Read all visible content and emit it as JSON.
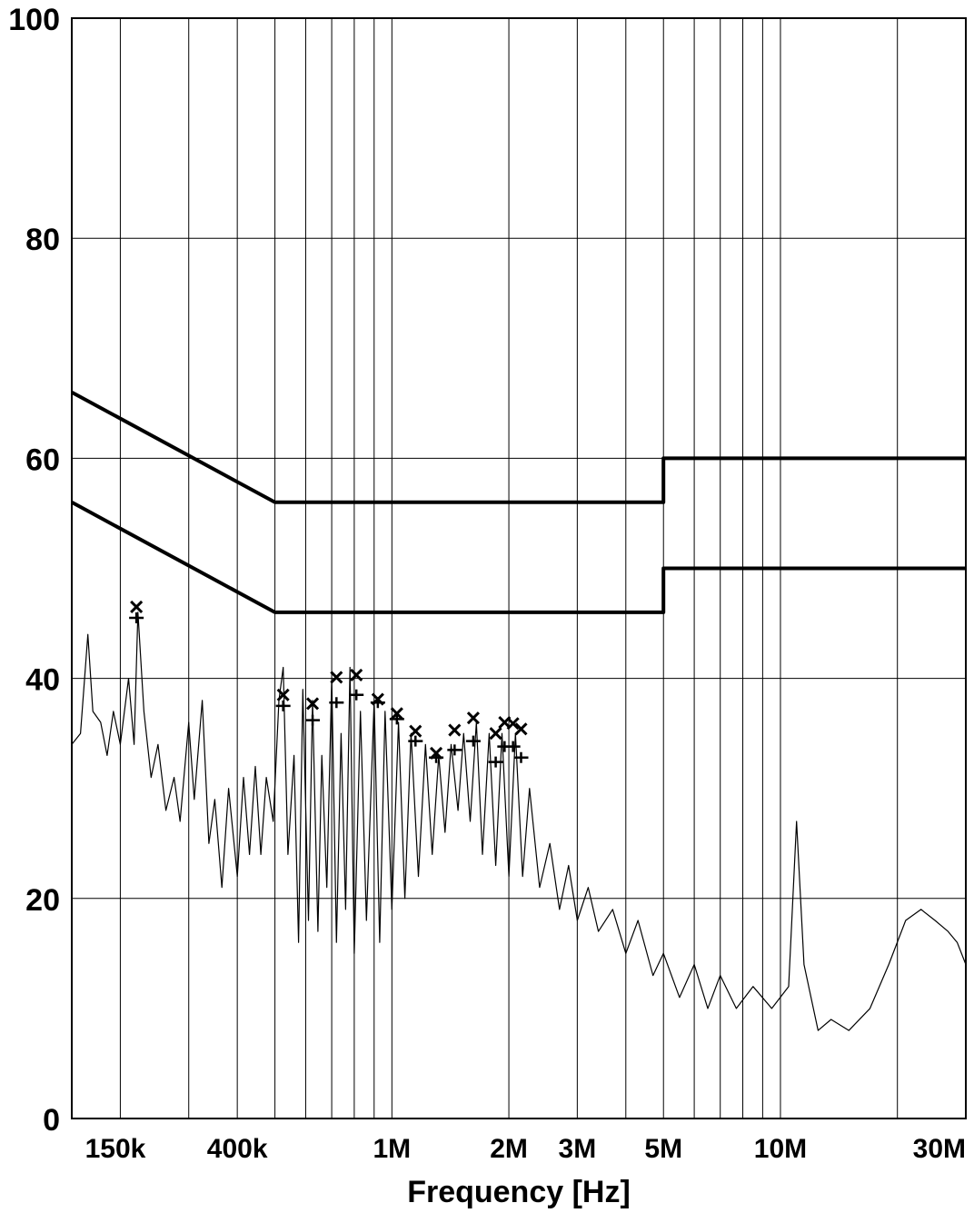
{
  "chart_data": {
    "type": "line",
    "title": "",
    "xlabel": "Frequency [Hz]",
    "ylabel": "",
    "xscale": "log",
    "xlim": [
      150000,
      30000000
    ],
    "ylim": [
      0,
      100
    ],
    "grid": true,
    "legend": "none",
    "colors": {
      "background": "#ffffff",
      "ink": "#000000"
    },
    "y_ticks": [
      {
        "value": 0,
        "label": "0"
      },
      {
        "value": 20,
        "label": "20"
      },
      {
        "value": 40,
        "label": "40"
      },
      {
        "value": 60,
        "label": "60"
      },
      {
        "value": 80,
        "label": "80"
      },
      {
        "value": 100,
        "label": "100"
      }
    ],
    "x_ticks": [
      {
        "value": 150000,
        "label": "150k"
      },
      {
        "value": 400000,
        "label": "400k"
      },
      {
        "value": 1000000,
        "label": "1M"
      },
      {
        "value": 2000000,
        "label": "2M"
      },
      {
        "value": 3000000,
        "label": "3M"
      },
      {
        "value": 5000000,
        "label": "5M"
      },
      {
        "value": 10000000,
        "label": "10M"
      },
      {
        "value": 30000000,
        "label": "30M"
      }
    ],
    "x_gridlines": [
      150000,
      200000,
      300000,
      400000,
      500000,
      600000,
      700000,
      800000,
      900000,
      1000000,
      2000000,
      3000000,
      4000000,
      5000000,
      6000000,
      7000000,
      8000000,
      9000000,
      10000000,
      20000000,
      30000000
    ],
    "series": [
      {
        "style": "limit",
        "points": [
          [
            150000,
            66
          ],
          [
            500000,
            56
          ],
          [
            5000000,
            56
          ],
          [
            5000000,
            60
          ],
          [
            30000000,
            60
          ]
        ]
      },
      {
        "style": "limit",
        "points": [
          [
            150000,
            56
          ],
          [
            500000,
            46
          ],
          [
            5000000,
            46
          ],
          [
            5000000,
            50
          ],
          [
            30000000,
            50
          ]
        ]
      },
      {
        "style": "trace",
        "points": [
          [
            150000,
            34
          ],
          [
            158000,
            35
          ],
          [
            165000,
            44
          ],
          [
            170000,
            37
          ],
          [
            178000,
            36
          ],
          [
            185000,
            33
          ],
          [
            192000,
            37
          ],
          [
            200000,
            34
          ],
          [
            210000,
            40
          ],
          [
            217000,
            34
          ],
          [
            222000,
            46
          ],
          [
            230000,
            37
          ],
          [
            240000,
            31
          ],
          [
            250000,
            34
          ],
          [
            262000,
            28
          ],
          [
            275000,
            31
          ],
          [
            285000,
            27
          ],
          [
            300000,
            36
          ],
          [
            310000,
            29
          ],
          [
            325000,
            38
          ],
          [
            338000,
            25
          ],
          [
            350000,
            29
          ],
          [
            365000,
            21
          ],
          [
            380000,
            30
          ],
          [
            400000,
            22
          ],
          [
            415000,
            31
          ],
          [
            430000,
            24
          ],
          [
            445000,
            32
          ],
          [
            460000,
            24
          ],
          [
            475000,
            31
          ],
          [
            495000,
            27
          ],
          [
            512000,
            38
          ],
          [
            525000,
            41
          ],
          [
            540000,
            24
          ],
          [
            560000,
            33
          ],
          [
            575000,
            16
          ],
          [
            590000,
            39
          ],
          [
            610000,
            18
          ],
          [
            625000,
            38
          ],
          [
            645000,
            17
          ],
          [
            660000,
            33
          ],
          [
            680000,
            21
          ],
          [
            700000,
            40
          ],
          [
            720000,
            16
          ],
          [
            740000,
            35
          ],
          [
            760000,
            19
          ],
          [
            780000,
            41
          ],
          [
            800000,
            15
          ],
          [
            830000,
            37
          ],
          [
            860000,
            18
          ],
          [
            900000,
            38
          ],
          [
            930000,
            16
          ],
          [
            960000,
            37
          ],
          [
            1000000,
            19
          ],
          [
            1040000,
            36
          ],
          [
            1080000,
            20
          ],
          [
            1120000,
            35
          ],
          [
            1170000,
            22
          ],
          [
            1220000,
            34
          ],
          [
            1270000,
            24
          ],
          [
            1320000,
            33
          ],
          [
            1370000,
            26
          ],
          [
            1420000,
            34
          ],
          [
            1480000,
            28
          ],
          [
            1530000,
            35
          ],
          [
            1590000,
            27
          ],
          [
            1650000,
            36
          ],
          [
            1710000,
            24
          ],
          [
            1780000,
            35
          ],
          [
            1850000,
            23
          ],
          [
            1920000,
            35
          ],
          [
            2000000,
            22
          ],
          [
            2080000,
            35
          ],
          [
            2170000,
            22
          ],
          [
            2260000,
            30
          ],
          [
            2400000,
            21
          ],
          [
            2550000,
            25
          ],
          [
            2700000,
            19
          ],
          [
            2850000,
            23
          ],
          [
            3000000,
            18
          ],
          [
            3200000,
            21
          ],
          [
            3400000,
            17
          ],
          [
            3700000,
            19
          ],
          [
            4000000,
            15
          ],
          [
            4300000,
            18
          ],
          [
            4700000,
            13
          ],
          [
            5000000,
            15
          ],
          [
            5500000,
            11
          ],
          [
            6000000,
            14
          ],
          [
            6500000,
            10
          ],
          [
            7000000,
            13
          ],
          [
            7700000,
            10
          ],
          [
            8500000,
            12
          ],
          [
            9500000,
            10
          ],
          [
            10500000,
            12
          ],
          [
            11000000,
            27
          ],
          [
            11500000,
            14
          ],
          [
            12500000,
            8
          ],
          [
            13500000,
            9
          ],
          [
            15000000,
            8
          ],
          [
            17000000,
            10
          ],
          [
            19000000,
            14
          ],
          [
            21000000,
            18
          ],
          [
            23000000,
            19
          ],
          [
            25000000,
            18
          ],
          [
            27000000,
            17
          ],
          [
            28500000,
            16
          ],
          [
            30000000,
            14
          ]
        ]
      }
    ],
    "markers": [
      {
        "x": 220000,
        "qp": 46.5,
        "av": 45.5
      },
      {
        "x": 525000,
        "qp": 38.5,
        "av": 37.5
      },
      {
        "x": 625000,
        "qp": 37.7,
        "av": 36.2
      },
      {
        "x": 720000,
        "qp": 40.1,
        "av": 37.8
      },
      {
        "x": 810000,
        "qp": 40.3,
        "av": 38.5
      },
      {
        "x": 920000,
        "qp": 38.1,
        "av": 37.8
      },
      {
        "x": 1030000,
        "qp": 36.8,
        "av": 36.3
      },
      {
        "x": 1150000,
        "qp": 35.2,
        "av": 34.3
      },
      {
        "x": 1300000,
        "qp": 33.2,
        "av": 32.8
      },
      {
        "x": 1450000,
        "qp": 35.3,
        "av": 33.5
      },
      {
        "x": 1620000,
        "qp": 36.4,
        "av": 34.3
      },
      {
        "x": 1850000,
        "qp": 35.0,
        "av": 32.4
      },
      {
        "x": 1950000,
        "qp": 36.0,
        "av": 33.8
      },
      {
        "x": 2050000,
        "qp": 35.9,
        "av": 33.8
      },
      {
        "x": 2150000,
        "qp": 35.4,
        "av": 32.8
      }
    ]
  }
}
